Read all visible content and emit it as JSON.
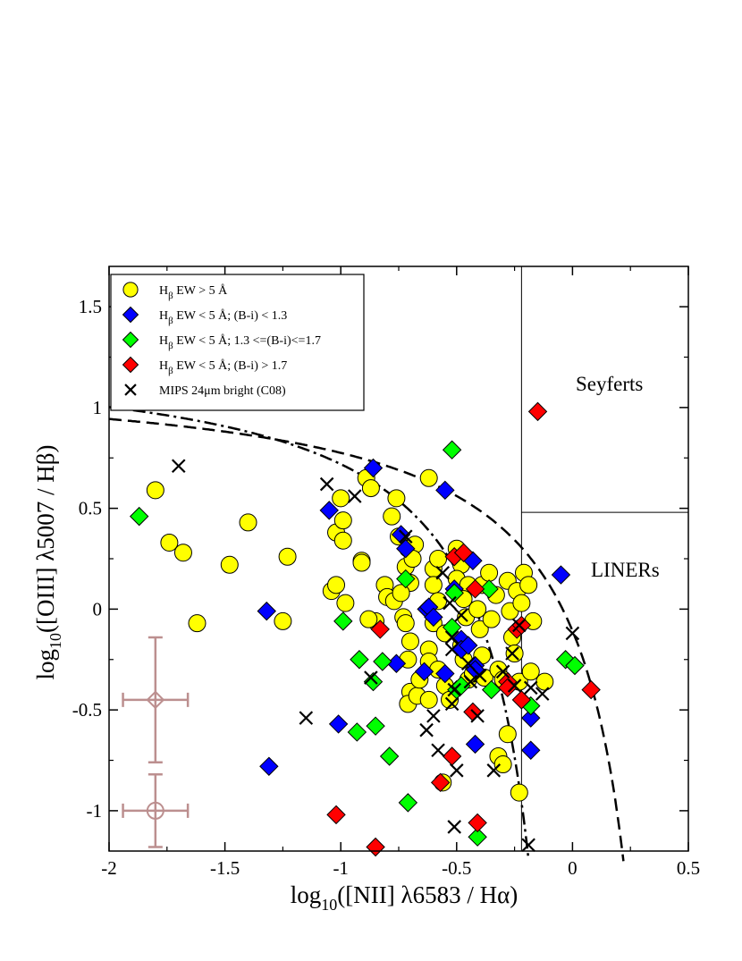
{
  "chart_data": {
    "type": "scatter",
    "xlabel": "log10([NII] λ6583 /  Hα)",
    "ylabel": "log10([OIII] λ5007 / Hβ)",
    "xlabel_parts": {
      "pre": "log",
      "sub": "10",
      "post": "([NII] λ6583 /  Hα)"
    },
    "ylabel_parts": {
      "pre": "log",
      "sub": "10",
      "post": "([OIII] λ5007 / Hβ)"
    },
    "xlim": [
      -2,
      0.5
    ],
    "ylim": [
      -1.2,
      1.7
    ],
    "xticks": [
      "-2",
      "-1.5",
      "-1",
      "-0.5",
      "0",
      "0.5"
    ],
    "yticks": [
      "-1",
      "-0.5",
      "0",
      "0.5",
      "1",
      "1.5"
    ],
    "xtick_values": [
      -2,
      -1.5,
      -1,
      -0.5,
      0,
      0.5
    ],
    "ytick_values": [
      -1,
      -0.5,
      0,
      0.5,
      1,
      1.5
    ],
    "grid": false,
    "legend_position": "top-left",
    "legend": [
      {
        "id": "ew-high",
        "marker": "circle",
        "color": "#ffff00",
        "pre": "H",
        "sub": "β",
        "post": " EW > 5 Å"
      },
      {
        "id": "blue",
        "marker": "diamond",
        "color": "#0000ff",
        "pre": "H",
        "sub": "β",
        "post": " EW < 5 Å; (B-i) < 1.3"
      },
      {
        "id": "green",
        "marker": "diamond",
        "color": "#00ff00",
        "pre": "H",
        "sub": "β",
        "post": " EW < 5 Å; 1.3 <=(B-i)<=1.7"
      },
      {
        "id": "red",
        "marker": "diamond",
        "color": "#ff0000",
        "pre": "H",
        "sub": "β",
        "post": " EW < 5 Å; (B-i) > 1.7"
      },
      {
        "id": "mips",
        "marker": "cross",
        "color": "#000000",
        "pre": "MIPS 24μm bright (C08)",
        "sub": "",
        "post": ""
      }
    ],
    "regions": [
      "Seyferts",
      "LINERs"
    ],
    "region_lines": {
      "vertical_x": -0.22,
      "horizontal_y": 0.48
    },
    "series": [
      {
        "name": "Hβ EW > 5 Å",
        "marker": "circle",
        "color": "#ffff00",
        "points": [
          [
            -1.8,
            0.59
          ],
          [
            -1.74,
            0.33
          ],
          [
            -1.68,
            0.28
          ],
          [
            -1.62,
            -0.07
          ],
          [
            -1.48,
            0.22
          ],
          [
            -1.4,
            0.43
          ],
          [
            -1.25,
            -0.06
          ],
          [
            -1.23,
            0.26
          ],
          [
            -1.0,
            0.55
          ],
          [
            -1.02,
            0.38
          ],
          [
            -0.99,
            0.44
          ],
          [
            -0.99,
            0.34
          ],
          [
            -1.04,
            0.09
          ],
          [
            -1.02,
            0.12
          ],
          [
            -0.98,
            0.03
          ],
          [
            -0.91,
            0.24
          ],
          [
            -0.91,
            0.23
          ],
          [
            -0.89,
            0.65
          ],
          [
            -0.87,
            0.6
          ],
          [
            -0.76,
            0.55
          ],
          [
            -0.78,
            0.46
          ],
          [
            -0.81,
            0.12
          ],
          [
            -0.8,
            0.06
          ],
          [
            -0.77,
            0.04
          ],
          [
            -0.85,
            -0.06
          ],
          [
            -0.88,
            -0.05
          ],
          [
            -0.75,
            0.36
          ],
          [
            -0.71,
            0.3
          ],
          [
            -0.72,
            0.21
          ],
          [
            -0.7,
            0.13
          ],
          [
            -0.74,
            0.08
          ],
          [
            -0.68,
            0.32
          ],
          [
            -0.69,
            0.25
          ],
          [
            -0.73,
            -0.04
          ],
          [
            -0.72,
            -0.07
          ],
          [
            -0.7,
            -0.16
          ],
          [
            -0.71,
            -0.25
          ],
          [
            -0.7,
            -0.41
          ],
          [
            -0.71,
            -0.47
          ],
          [
            -0.67,
            -0.43
          ],
          [
            -0.66,
            -0.35
          ],
          [
            -0.62,
            0.65
          ],
          [
            -0.6,
            0.2
          ],
          [
            -0.6,
            0.12
          ],
          [
            -0.58,
            0.25
          ],
          [
            -0.58,
            0.04
          ],
          [
            -0.6,
            -0.07
          ],
          [
            -0.62,
            -0.2
          ],
          [
            -0.62,
            -0.26
          ],
          [
            -0.62,
            -0.45
          ],
          [
            -0.58,
            -0.3
          ],
          [
            -0.55,
            -0.12
          ],
          [
            -0.55,
            -0.38
          ],
          [
            -0.53,
            -0.45
          ],
          [
            -0.5,
            0.3
          ],
          [
            -0.48,
            0.22
          ],
          [
            -0.5,
            0.15
          ],
          [
            -0.45,
            0.12
          ],
          [
            -0.47,
            0.05
          ],
          [
            -0.46,
            -0.04
          ],
          [
            -0.48,
            -0.18
          ],
          [
            -0.47,
            -0.25
          ],
          [
            -0.45,
            -0.35
          ],
          [
            -0.43,
            -0.32
          ],
          [
            -0.41,
            0.0
          ],
          [
            -0.4,
            -0.1
          ],
          [
            -0.39,
            -0.23
          ],
          [
            -0.38,
            -0.34
          ],
          [
            -0.39,
            0.12
          ],
          [
            -0.36,
            0.18
          ],
          [
            -0.33,
            0.07
          ],
          [
            -0.35,
            -0.05
          ],
          [
            -0.32,
            -0.3
          ],
          [
            -0.3,
            -0.35
          ],
          [
            -0.28,
            0.14
          ],
          [
            -0.27,
            -0.01
          ],
          [
            -0.26,
            -0.14
          ],
          [
            -0.25,
            -0.22
          ],
          [
            -0.24,
            0.09
          ],
          [
            -0.22,
            0.03
          ],
          [
            -0.23,
            -0.36
          ],
          [
            -0.21,
            0.18
          ],
          [
            -0.19,
            0.12
          ],
          [
            -0.17,
            -0.06
          ],
          [
            -0.18,
            -0.31
          ],
          [
            -0.12,
            -0.36
          ],
          [
            -0.28,
            -0.62
          ],
          [
            -0.32,
            -0.73
          ],
          [
            -0.3,
            -0.77
          ],
          [
            -0.23,
            -0.91
          ],
          [
            -0.56,
            -0.86
          ]
        ]
      },
      {
        "name": "Hβ EW < 5 Å; (B-i) < 1.3",
        "marker": "diamond",
        "color": "#0000ff",
        "points": [
          [
            -0.86,
            0.7
          ],
          [
            -1.05,
            0.49
          ],
          [
            -0.55,
            0.59
          ],
          [
            -0.74,
            0.37
          ],
          [
            -0.72,
            0.3
          ],
          [
            -0.43,
            0.24
          ],
          [
            -0.63,
            0.0
          ],
          [
            -0.62,
            0.01
          ],
          [
            -0.6,
            -0.04
          ],
          [
            -0.51,
            0.1
          ],
          [
            -0.48,
            -0.15
          ],
          [
            -0.48,
            -0.2
          ],
          [
            -0.42,
            -0.28
          ],
          [
            -0.42,
            -0.3
          ],
          [
            -1.32,
            -0.01
          ],
          [
            -1.31,
            -0.78
          ],
          [
            -1.01,
            -0.57
          ],
          [
            -0.76,
            -0.27
          ],
          [
            -0.64,
            -0.31
          ],
          [
            -0.45,
            -0.18
          ],
          [
            -0.42,
            -0.67
          ],
          [
            -0.18,
            -0.54
          ],
          [
            -0.18,
            -0.7
          ],
          [
            -0.05,
            0.17
          ],
          [
            -0.55,
            -0.32
          ]
        ]
      },
      {
        "name": "Hβ EW < 5 Å; 1.3 <=(B-i)<=1.7",
        "marker": "diamond",
        "color": "#00ff00",
        "points": [
          [
            -1.87,
            0.46
          ],
          [
            -0.52,
            0.79
          ],
          [
            -0.72,
            0.15
          ],
          [
            -0.51,
            0.08
          ],
          [
            -0.36,
            0.1
          ],
          [
            -0.99,
            -0.06
          ],
          [
            -0.92,
            -0.25
          ],
          [
            -0.86,
            -0.36
          ],
          [
            -0.82,
            -0.26
          ],
          [
            -0.93,
            -0.61
          ],
          [
            -0.85,
            -0.58
          ],
          [
            -0.79,
            -0.73
          ],
          [
            -0.71,
            -0.96
          ],
          [
            -0.5,
            -0.4
          ],
          [
            -0.48,
            -0.38
          ],
          [
            -0.35,
            -0.4
          ],
          [
            -0.41,
            -1.13
          ],
          [
            -0.18,
            -0.48
          ],
          [
            -0.03,
            -0.25
          ],
          [
            0.01,
            -0.28
          ],
          [
            -0.52,
            -0.09
          ]
        ]
      },
      {
        "name": "Hβ EW < 5 Å; (B-i) > 1.7",
        "marker": "diamond",
        "color": "#ff0000",
        "points": [
          [
            -0.15,
            0.98
          ],
          [
            -0.51,
            0.26
          ],
          [
            -0.47,
            0.28
          ],
          [
            -0.42,
            0.1
          ],
          [
            -0.83,
            -0.1
          ],
          [
            -0.28,
            -0.36
          ],
          [
            -0.24,
            -0.1
          ],
          [
            -0.22,
            -0.45
          ],
          [
            0.08,
            -0.4
          ],
          [
            -0.43,
            -0.51
          ],
          [
            -0.52,
            -0.73
          ],
          [
            -0.57,
            -0.86
          ],
          [
            -1.02,
            -1.02
          ],
          [
            -0.85,
            -1.18
          ],
          [
            -0.41,
            -1.06
          ],
          [
            -0.28,
            -0.39
          ],
          [
            -0.22,
            -0.08
          ]
        ]
      },
      {
        "name": "MIPS 24μm bright (C08)",
        "marker": "cross",
        "color": "#000000",
        "points": [
          [
            -1.7,
            0.71
          ],
          [
            -1.06,
            0.62
          ],
          [
            -0.94,
            0.56
          ],
          [
            -0.72,
            0.36
          ],
          [
            -0.56,
            0.18
          ],
          [
            -0.53,
            0.03
          ],
          [
            -0.48,
            -0.03
          ],
          [
            -0.52,
            -0.14
          ],
          [
            -0.52,
            -0.2
          ],
          [
            -0.45,
            -0.27
          ],
          [
            -0.4,
            -0.33
          ],
          [
            -0.44,
            -0.36
          ],
          [
            -0.51,
            -0.4
          ],
          [
            -0.52,
            -0.47
          ],
          [
            -0.6,
            -0.53
          ],
          [
            -0.58,
            -0.7
          ],
          [
            -0.63,
            -0.6
          ],
          [
            -0.5,
            -0.8
          ],
          [
            -0.41,
            -0.53
          ],
          [
            -0.3,
            -0.31
          ],
          [
            -0.25,
            -0.38
          ],
          [
            -0.23,
            -0.08
          ],
          [
            -0.34,
            -0.8
          ],
          [
            -0.18,
            -0.39
          ],
          [
            -0.13,
            -0.42
          ],
          [
            0.0,
            -0.12
          ],
          [
            -1.15,
            -0.54
          ],
          [
            -0.87,
            -0.34
          ],
          [
            -0.51,
            -1.08
          ],
          [
            -0.19,
            -1.17
          ],
          [
            -0.26,
            -0.22
          ]
        ]
      }
    ],
    "error_bars": [
      {
        "x": -1.8,
        "y": -0.45,
        "xerr": 0.14,
        "yerr": 0.31
      },
      {
        "x": -1.8,
        "y": -1.0,
        "xerr": 0.14,
        "yerr": 0.18
      }
    ]
  }
}
